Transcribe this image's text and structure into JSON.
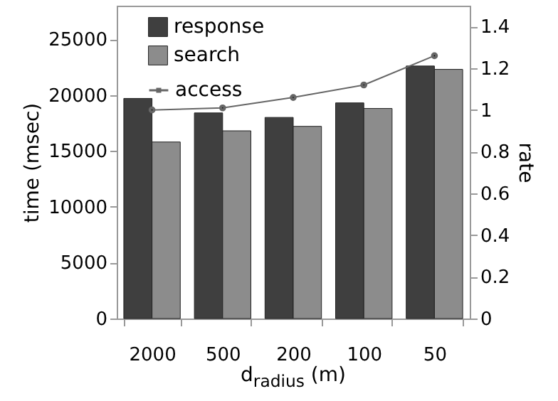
{
  "chart_data": {
    "type": "bar",
    "categories": [
      "2000",
      "500",
      "200",
      "100",
      "50"
    ],
    "xlabel": "d$_{radius}$ (m)",
    "ylabel": "time (msec)",
    "y2label": "rate",
    "ylim": [
      0,
      28000
    ],
    "yticks": [
      0,
      5000,
      10000,
      15000,
      20000,
      25000
    ],
    "y2lim": [
      0,
      1.5
    ],
    "y2ticks": [
      0,
      0.2,
      0.4,
      0.6,
      0.8,
      1,
      1.2,
      1.4
    ],
    "series": [
      {
        "name": "response",
        "color": "#3f3f3f",
        "values": [
          19700,
          18400,
          18000,
          19300,
          22600
        ]
      },
      {
        "name": "search",
        "color": "#8c8c8c",
        "values": [
          15800,
          16800,
          17200,
          18800,
          22300
        ]
      },
      {
        "name": "access",
        "type": "line",
        "axis": "y2",
        "color": "#666666",
        "marker": "circle",
        "values": [
          1.0,
          1.01,
          1.06,
          1.12,
          1.26
        ]
      }
    ],
    "legend": "top left",
    "grid": false
  }
}
